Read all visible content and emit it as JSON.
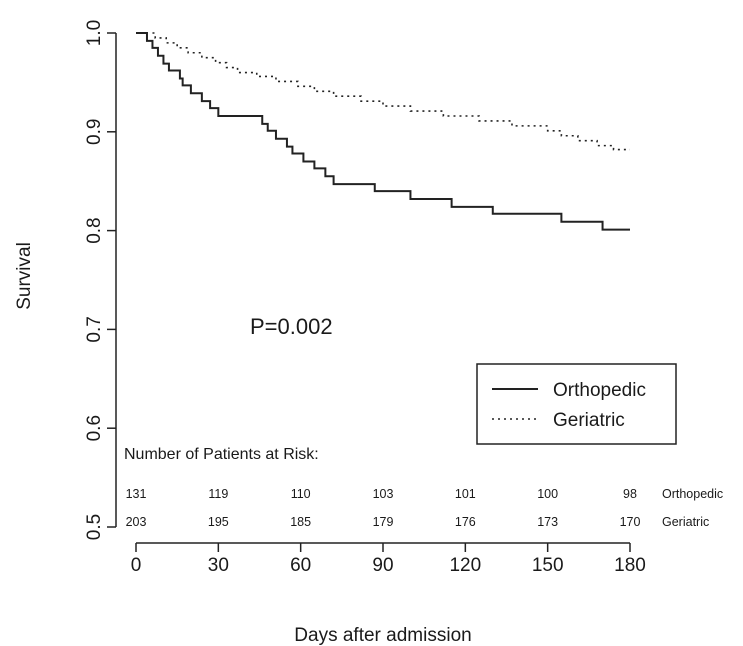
{
  "chart_data": {
    "type": "line",
    "title": "",
    "xlabel": "Days after admission",
    "ylabel": "Survival",
    "xlim": [
      0,
      180
    ],
    "ylim": [
      0.5,
      1.0
    ],
    "x_ticks": [
      "0",
      "30",
      "60",
      "90",
      "120",
      "150",
      "180"
    ],
    "y_ticks": [
      "0.5",
      "0.6",
      "0.7",
      "0.8",
      "0.9",
      "1.0"
    ],
    "grid": false,
    "legend_placement": "bottom-right",
    "annotation": "P=0.002",
    "series": [
      {
        "name": "Orthopedic",
        "style": "solid",
        "points": [
          [
            0,
            1.0
          ],
          [
            3,
            1.0
          ],
          [
            4,
            0.992
          ],
          [
            6,
            0.985
          ],
          [
            8,
            0.977
          ],
          [
            10,
            0.969
          ],
          [
            12,
            0.962
          ],
          [
            16,
            0.954
          ],
          [
            17,
            0.947
          ],
          [
            20,
            0.939
          ],
          [
            24,
            0.931
          ],
          [
            27,
            0.924
          ],
          [
            30,
            0.916
          ],
          [
            33,
            0.916
          ],
          [
            46,
            0.908
          ],
          [
            48,
            0.901
          ],
          [
            51,
            0.893
          ],
          [
            55,
            0.885
          ],
          [
            57,
            0.878
          ],
          [
            61,
            0.87
          ],
          [
            65,
            0.863
          ],
          [
            69,
            0.855
          ],
          [
            72,
            0.847
          ],
          [
            87,
            0.84
          ],
          [
            100,
            0.832
          ],
          [
            115,
            0.824
          ],
          [
            130,
            0.817
          ],
          [
            155,
            0.809
          ],
          [
            170,
            0.801
          ],
          [
            180,
            0.801
          ]
        ]
      },
      {
        "name": "Geriatric",
        "style": "dotted",
        "points": [
          [
            6,
            1.0
          ],
          [
            7,
            0.995
          ],
          [
            11,
            0.99
          ],
          [
            15,
            0.985
          ],
          [
            19,
            0.98
          ],
          [
            24,
            0.975
          ],
          [
            29,
            0.97
          ],
          [
            33,
            0.965
          ],
          [
            37,
            0.96
          ],
          [
            44,
            0.956
          ],
          [
            51,
            0.951
          ],
          [
            59,
            0.946
          ],
          [
            65,
            0.941
          ],
          [
            72,
            0.936
          ],
          [
            82,
            0.931
          ],
          [
            90,
            0.926
          ],
          [
            100,
            0.921
          ],
          [
            112,
            0.916
          ],
          [
            125,
            0.911
          ],
          [
            137,
            0.906
          ],
          [
            150,
            0.901
          ],
          [
            155,
            0.896
          ],
          [
            161,
            0.891
          ],
          [
            168,
            0.886
          ],
          [
            174,
            0.882
          ],
          [
            180,
            0.882
          ]
        ]
      }
    ],
    "risk_table": {
      "title": "Number of Patients at Risk:",
      "times": [
        0,
        30,
        60,
        90,
        120,
        150,
        180
      ],
      "rows": [
        {
          "group": "Orthopedic",
          "counts": [
            "131",
            "119",
            "110",
            "103",
            "101",
            "100",
            "98"
          ]
        },
        {
          "group": "Geriatric",
          "counts": [
            "203",
            "195",
            "185",
            "179",
            "176",
            "173",
            "170"
          ]
        }
      ]
    }
  }
}
